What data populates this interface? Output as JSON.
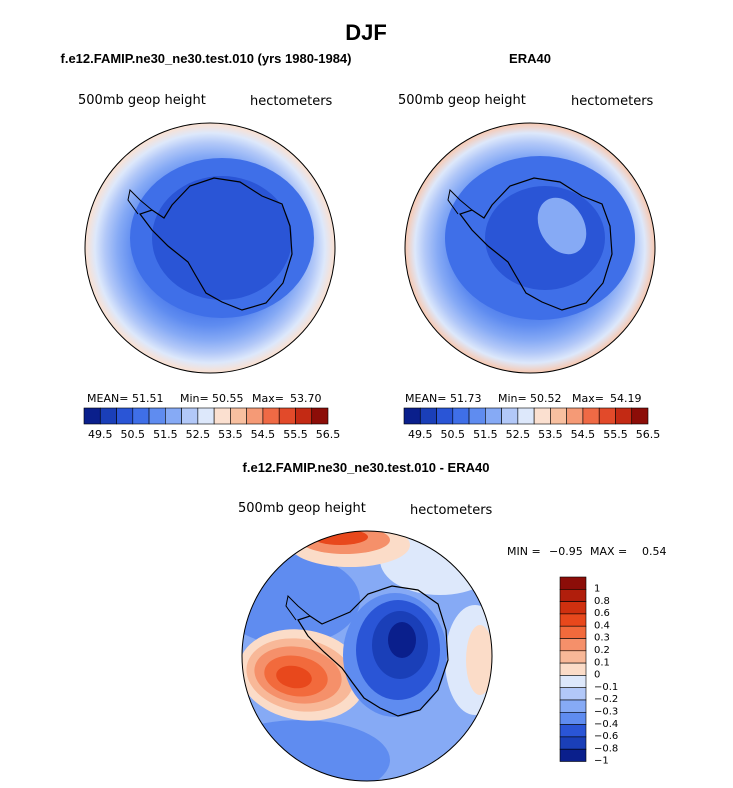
{
  "chart_data": [
    {
      "type": "heatmap",
      "projection": "polar stereographic (south)",
      "title": "f.e12.FAMIP.ne30_ne30.test.010 (yrs 1980-1984)",
      "left_label": "500mb geop height",
      "right_label": "hectometers",
      "stats": {
        "mean_label": "MEAN=",
        "mean": "51.51",
        "min_label": "Min=",
        "min": "50.55",
        "max_label": "Max=",
        "max": "53.70"
      },
      "colorbar_labels": [
        "49.5",
        "50.5",
        "51.5",
        "52.5",
        "53.5",
        "54.5",
        "55.5",
        "56.5"
      ],
      "colorbar_colors": [
        "#0a1f8c",
        "#1a3fb8",
        "#2a55d6",
        "#3f6fe8",
        "#5f8cf0",
        "#86aaf5",
        "#b2c8f8",
        "#dde8fb",
        "#fbe0d0",
        "#f8c0a0",
        "#f59a76",
        "#ef6a45",
        "#e24a2a",
        "#c32a14",
        "#8c0d08"
      ]
    },
    {
      "type": "heatmap",
      "projection": "polar stereographic (south)",
      "title": "ERA40",
      "left_label": "500mb geop height",
      "right_label": "hectometers",
      "stats": {
        "mean_label": "MEAN=",
        "mean": "51.73",
        "min_label": "Min=",
        "min": "50.52",
        "max_label": "Max=",
        "max": "54.19"
      },
      "colorbar_labels": [
        "49.5",
        "50.5",
        "51.5",
        "52.5",
        "53.5",
        "54.5",
        "55.5",
        "56.5"
      ]
    },
    {
      "type": "heatmap",
      "projection": "polar stereographic (south)",
      "title": "f.e12.FAMIP.ne30_ne30.test.010 - ERA40",
      "left_label": "500mb geop height",
      "right_label": "hectometers",
      "stats": {
        "min_label": "MIN =",
        "min": "−0.95",
        "max_label": "MAX =",
        "max": "0.54"
      },
      "colorbar_labels": [
        "1",
        "0.8",
        "0.6",
        "0.4",
        "0.3",
        "0.2",
        "0.1",
        "0",
        "−0.1",
        "−0.2",
        "−0.3",
        "−0.4",
        "−0.6",
        "−0.8",
        "−1"
      ],
      "colorbar_colors": [
        "#8c0d08",
        "#b01e0c",
        "#d0300f",
        "#e8481c",
        "#f26a3c",
        "#f5906a",
        "#f8b898",
        "#fbdcc8",
        "#dde8fb",
        "#b2c8f8",
        "#86aaf5",
        "#5f8cf0",
        "#2a55d6",
        "#1a3fb8",
        "#0a1f8c"
      ]
    }
  ],
  "figure": {
    "suptitle": "DJF"
  }
}
